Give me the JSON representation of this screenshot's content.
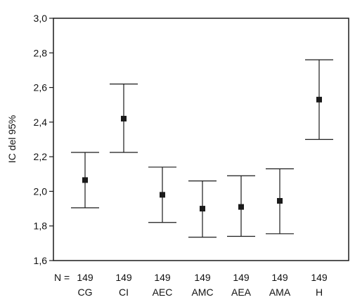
{
  "chart_data": {
    "type": "errorbar",
    "ylabel": "IC del 95%",
    "ylim": [
      1.6,
      3.0
    ],
    "yticks": [
      "1,6",
      "1,8",
      "2,0",
      "2,2",
      "2,4",
      "2,6",
      "2,8",
      "3,0"
    ],
    "ytick_values": [
      1.6,
      1.8,
      2.0,
      2.2,
      2.4,
      2.6,
      2.8,
      3.0
    ],
    "grid": false,
    "n_prefix": "N =",
    "categories": [
      "CG",
      "CI",
      "AEC",
      "AMC",
      "AEA",
      "AMA",
      "H"
    ],
    "n_values": [
      "149",
      "149",
      "149",
      "149",
      "149",
      "149",
      "149"
    ],
    "means": [
      2.065,
      2.42,
      1.98,
      1.9,
      1.91,
      1.945,
      2.53
    ],
    "lower": [
      1.905,
      2.225,
      1.82,
      1.735,
      1.74,
      1.755,
      2.3
    ],
    "upper": [
      2.225,
      2.62,
      2.14,
      2.06,
      2.09,
      2.13,
      2.76
    ],
    "marker_color": "#1a1a1a",
    "line_color": "#1a1a1a"
  }
}
